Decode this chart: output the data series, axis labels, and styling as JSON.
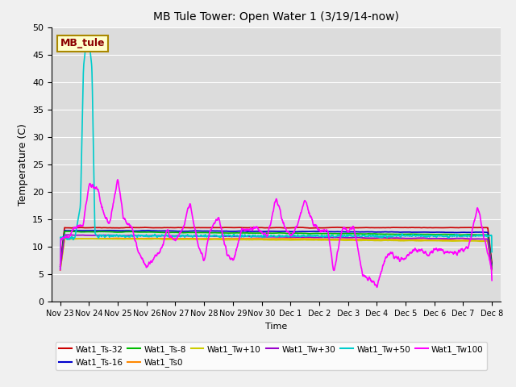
{
  "title": "MB Tule Tower: Open Water 1 (3/19/14-now)",
  "xlabel": "Time",
  "ylabel": "Temperature (C)",
  "ylim": [
    0,
    50
  ],
  "yticks": [
    0,
    5,
    10,
    15,
    20,
    25,
    30,
    35,
    40,
    45,
    50
  ],
  "background_color": "#dcdcdc",
  "grid_color": "#ffffff",
  "series_names": [
    "Wat1_Ts-32",
    "Wat1_Ts-16",
    "Wat1_Ts-8",
    "Wat1_Ts0",
    "Wat1_Tw+10",
    "Wat1_Tw+30",
    "Wat1_Tw+50",
    "Wat1_Tw100"
  ],
  "series_colors": [
    "#cc0000",
    "#0000cc",
    "#00bb00",
    "#ff8800",
    "#cccc00",
    "#9900cc",
    "#00cccc",
    "#ff00ff"
  ],
  "xtick_labels": [
    "Nov 23",
    "Nov 24",
    "Nov 25",
    "Nov 26",
    "Nov 27",
    "Nov 28",
    "Nov 29",
    "Nov 30",
    "Dec 1",
    "Dec 2",
    "Dec 3",
    "Dec 4",
    "Dec 5",
    "Dec 6",
    "Dec 7",
    "Dec 8"
  ],
  "annotation_text": "MB_tule",
  "lw": 1.2
}
